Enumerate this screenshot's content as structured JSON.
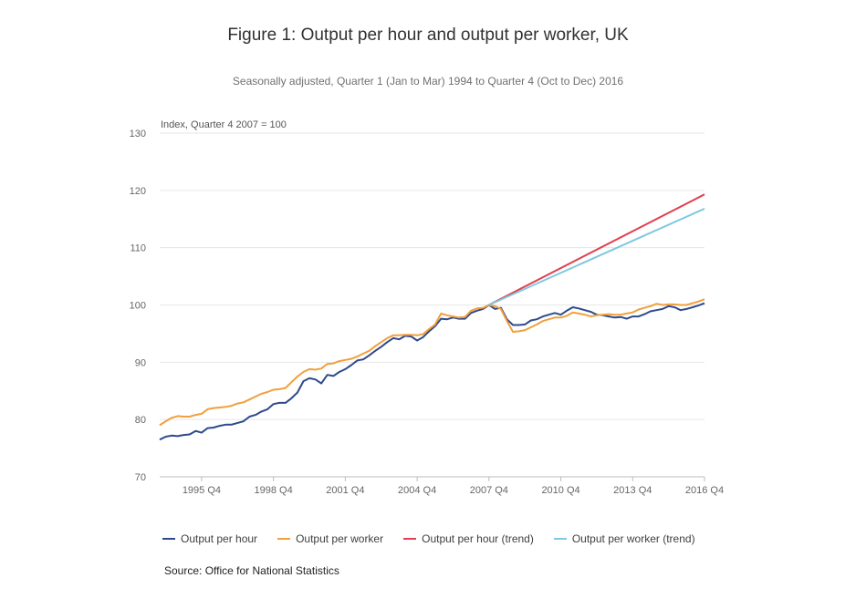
{
  "title": "Figure 1: Output per hour and output per worker, UK",
  "subtitle": "Seasonally adjusted, Quarter 1 (Jan to Mar) 1994 to Quarter 4 (Oct to Dec) 2016",
  "source": "Source: Office for National Statistics",
  "chart_data": {
    "type": "line",
    "ylabel": "Index, Quarter 4 2007 = 100",
    "ylim": [
      70,
      130
    ],
    "yticks": [
      70,
      80,
      90,
      100,
      110,
      120,
      130
    ],
    "xlim": [
      1994.0,
      2016.75
    ],
    "xticks": [
      {
        "label": "1995 Q4",
        "x": 1995.75
      },
      {
        "label": "1998 Q4",
        "x": 1998.75
      },
      {
        "label": "2001 Q4",
        "x": 2001.75
      },
      {
        "label": "2004 Q4",
        "x": 2004.75
      },
      {
        "label": "2007 Q4",
        "x": 2007.75
      },
      {
        "label": "2010 Q4",
        "x": 2010.75
      },
      {
        "label": "2013 Q4",
        "x": 2013.75
      },
      {
        "label": "2016 Q4",
        "x": 2016.75
      }
    ],
    "grid": true,
    "legend_position": "bottom",
    "series": [
      {
        "name": "Output per hour",
        "color": "#2e4a8c",
        "start": 1994.0,
        "step": 0.25,
        "values": [
          76.5,
          77.0,
          77.2,
          77.1,
          77.3,
          77.4,
          78.0,
          77.7,
          78.5,
          78.6,
          78.9,
          79.1,
          79.1,
          79.4,
          79.7,
          80.5,
          80.8,
          81.4,
          81.8,
          82.7,
          82.9,
          82.9,
          83.7,
          84.7,
          86.7,
          87.2,
          87.0,
          86.3,
          87.8,
          87.6,
          88.3,
          88.8,
          89.5,
          90.3,
          90.5,
          91.2,
          92.0,
          92.7,
          93.5,
          94.2,
          94.0,
          94.6,
          94.5,
          93.8,
          94.4,
          95.4,
          96.3,
          97.6,
          97.5,
          97.8,
          97.6,
          97.6,
          98.6,
          99.0,
          99.3,
          100.0,
          99.3,
          99.5,
          97.5,
          96.5,
          96.5,
          96.6,
          97.3,
          97.5,
          98.0,
          98.3,
          98.6,
          98.3,
          99.0,
          99.6,
          99.4,
          99.1,
          98.8,
          98.3,
          98.2,
          98.0,
          97.8,
          97.9,
          97.6,
          98.0,
          98.0,
          98.4,
          98.9,
          99.1,
          99.3,
          99.8,
          99.6,
          99.1,
          99.3,
          99.6,
          99.9,
          100.3
        ]
      },
      {
        "name": "Output per worker",
        "color": "#f0a03c",
        "start": 1994.0,
        "step": 0.25,
        "values": [
          79.0,
          79.7,
          80.3,
          80.6,
          80.5,
          80.5,
          80.8,
          81.0,
          81.8,
          82.0,
          82.1,
          82.2,
          82.4,
          82.8,
          83.0,
          83.5,
          84.0,
          84.5,
          84.8,
          85.2,
          85.3,
          85.5,
          86.5,
          87.5,
          88.3,
          88.8,
          88.7,
          88.9,
          89.7,
          89.8,
          90.2,
          90.4,
          90.6,
          91.0,
          91.5,
          92.0,
          92.8,
          93.5,
          94.2,
          94.7,
          94.7,
          94.8,
          94.8,
          94.7,
          94.9,
          95.8,
          96.6,
          98.5,
          98.2,
          98.0,
          97.8,
          97.9,
          99.0,
          99.4,
          99.5,
          100.0,
          99.8,
          99.3,
          97.2,
          95.3,
          95.4,
          95.6,
          96.1,
          96.6,
          97.2,
          97.5,
          97.8,
          97.8,
          98.1,
          98.7,
          98.5,
          98.3,
          98.0,
          98.2,
          98.3,
          98.4,
          98.3,
          98.3,
          98.5,
          98.7,
          99.2,
          99.5,
          99.8,
          100.2,
          100.0,
          100.1,
          100.1,
          100.0,
          100.0,
          100.3,
          100.6,
          101.0
        ]
      },
      {
        "name": "Output per hour (trend)",
        "color": "#e0404f",
        "x": [
          2007.75,
          2016.75
        ],
        "values": [
          100.0,
          119.3
        ]
      },
      {
        "name": "Output per worker (trend)",
        "color": "#7ec8e0",
        "x": [
          2007.75,
          2016.75
        ],
        "values": [
          100.0,
          116.8
        ]
      }
    ]
  }
}
